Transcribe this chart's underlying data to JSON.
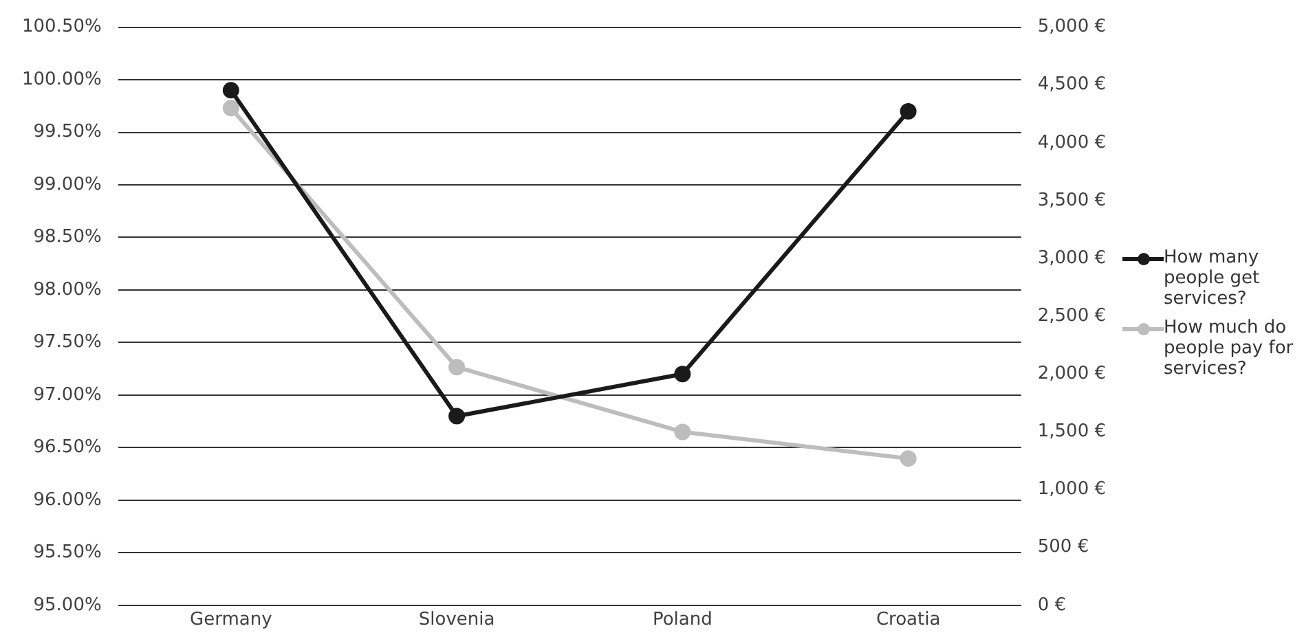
{
  "chart_data": {
    "type": "line",
    "categories": [
      "Germany",
      "Slovenia",
      "Poland",
      "Croatia"
    ],
    "series": [
      {
        "name": "How many people get services?",
        "color": "#1a1a1a",
        "values": [
          99.9,
          96.8,
          97.2,
          99.7
        ]
      },
      {
        "name": "How much do people pay for services?",
        "color": "#bdbdbd",
        "axis": "y2",
        "values": [
          4300,
          2060,
          1500,
          1270
        ]
      }
    ],
    "ylim": [
      95,
      100.5
    ],
    "yticks": [
      {
        "value": 95,
        "label": "95.00%"
      },
      {
        "value": 95.5,
        "label": "95.50%"
      },
      {
        "value": 96,
        "label": "96.00%"
      },
      {
        "value": 96.5,
        "label": "96.50%"
      },
      {
        "value": 97,
        "label": "97.00%"
      },
      {
        "value": 97.5,
        "label": "97.50%"
      },
      {
        "value": 98,
        "label": "98.00%"
      },
      {
        "value": 98.5,
        "label": "98.50%"
      },
      {
        "value": 99,
        "label": "99.00%"
      },
      {
        "value": 99.5,
        "label": "99.50%"
      },
      {
        "value": 100,
        "label": "100.00%"
      },
      {
        "value": 100.5,
        "label": "100.50%"
      }
    ],
    "y2lim": [
      0,
      5000
    ],
    "y2ticks": [
      {
        "value": 0,
        "label": "0 €"
      },
      {
        "value": 500,
        "label": "500 €"
      },
      {
        "value": 1000,
        "label": "1,000 €"
      },
      {
        "value": 1500,
        "label": "1,500 €"
      },
      {
        "value": 2000,
        "label": "2,000 €"
      },
      {
        "value": 2500,
        "label": "2,500 €"
      },
      {
        "value": 3000,
        "label": "3,000 €"
      },
      {
        "value": 3500,
        "label": "3,500 €"
      },
      {
        "value": 4000,
        "label": "4,000 €"
      },
      {
        "value": 4500,
        "label": "4,500 €"
      },
      {
        "value": 5000,
        "label": "5,000 €"
      }
    ],
    "grid": "y",
    "legend": "right",
    "marker": "circle"
  }
}
